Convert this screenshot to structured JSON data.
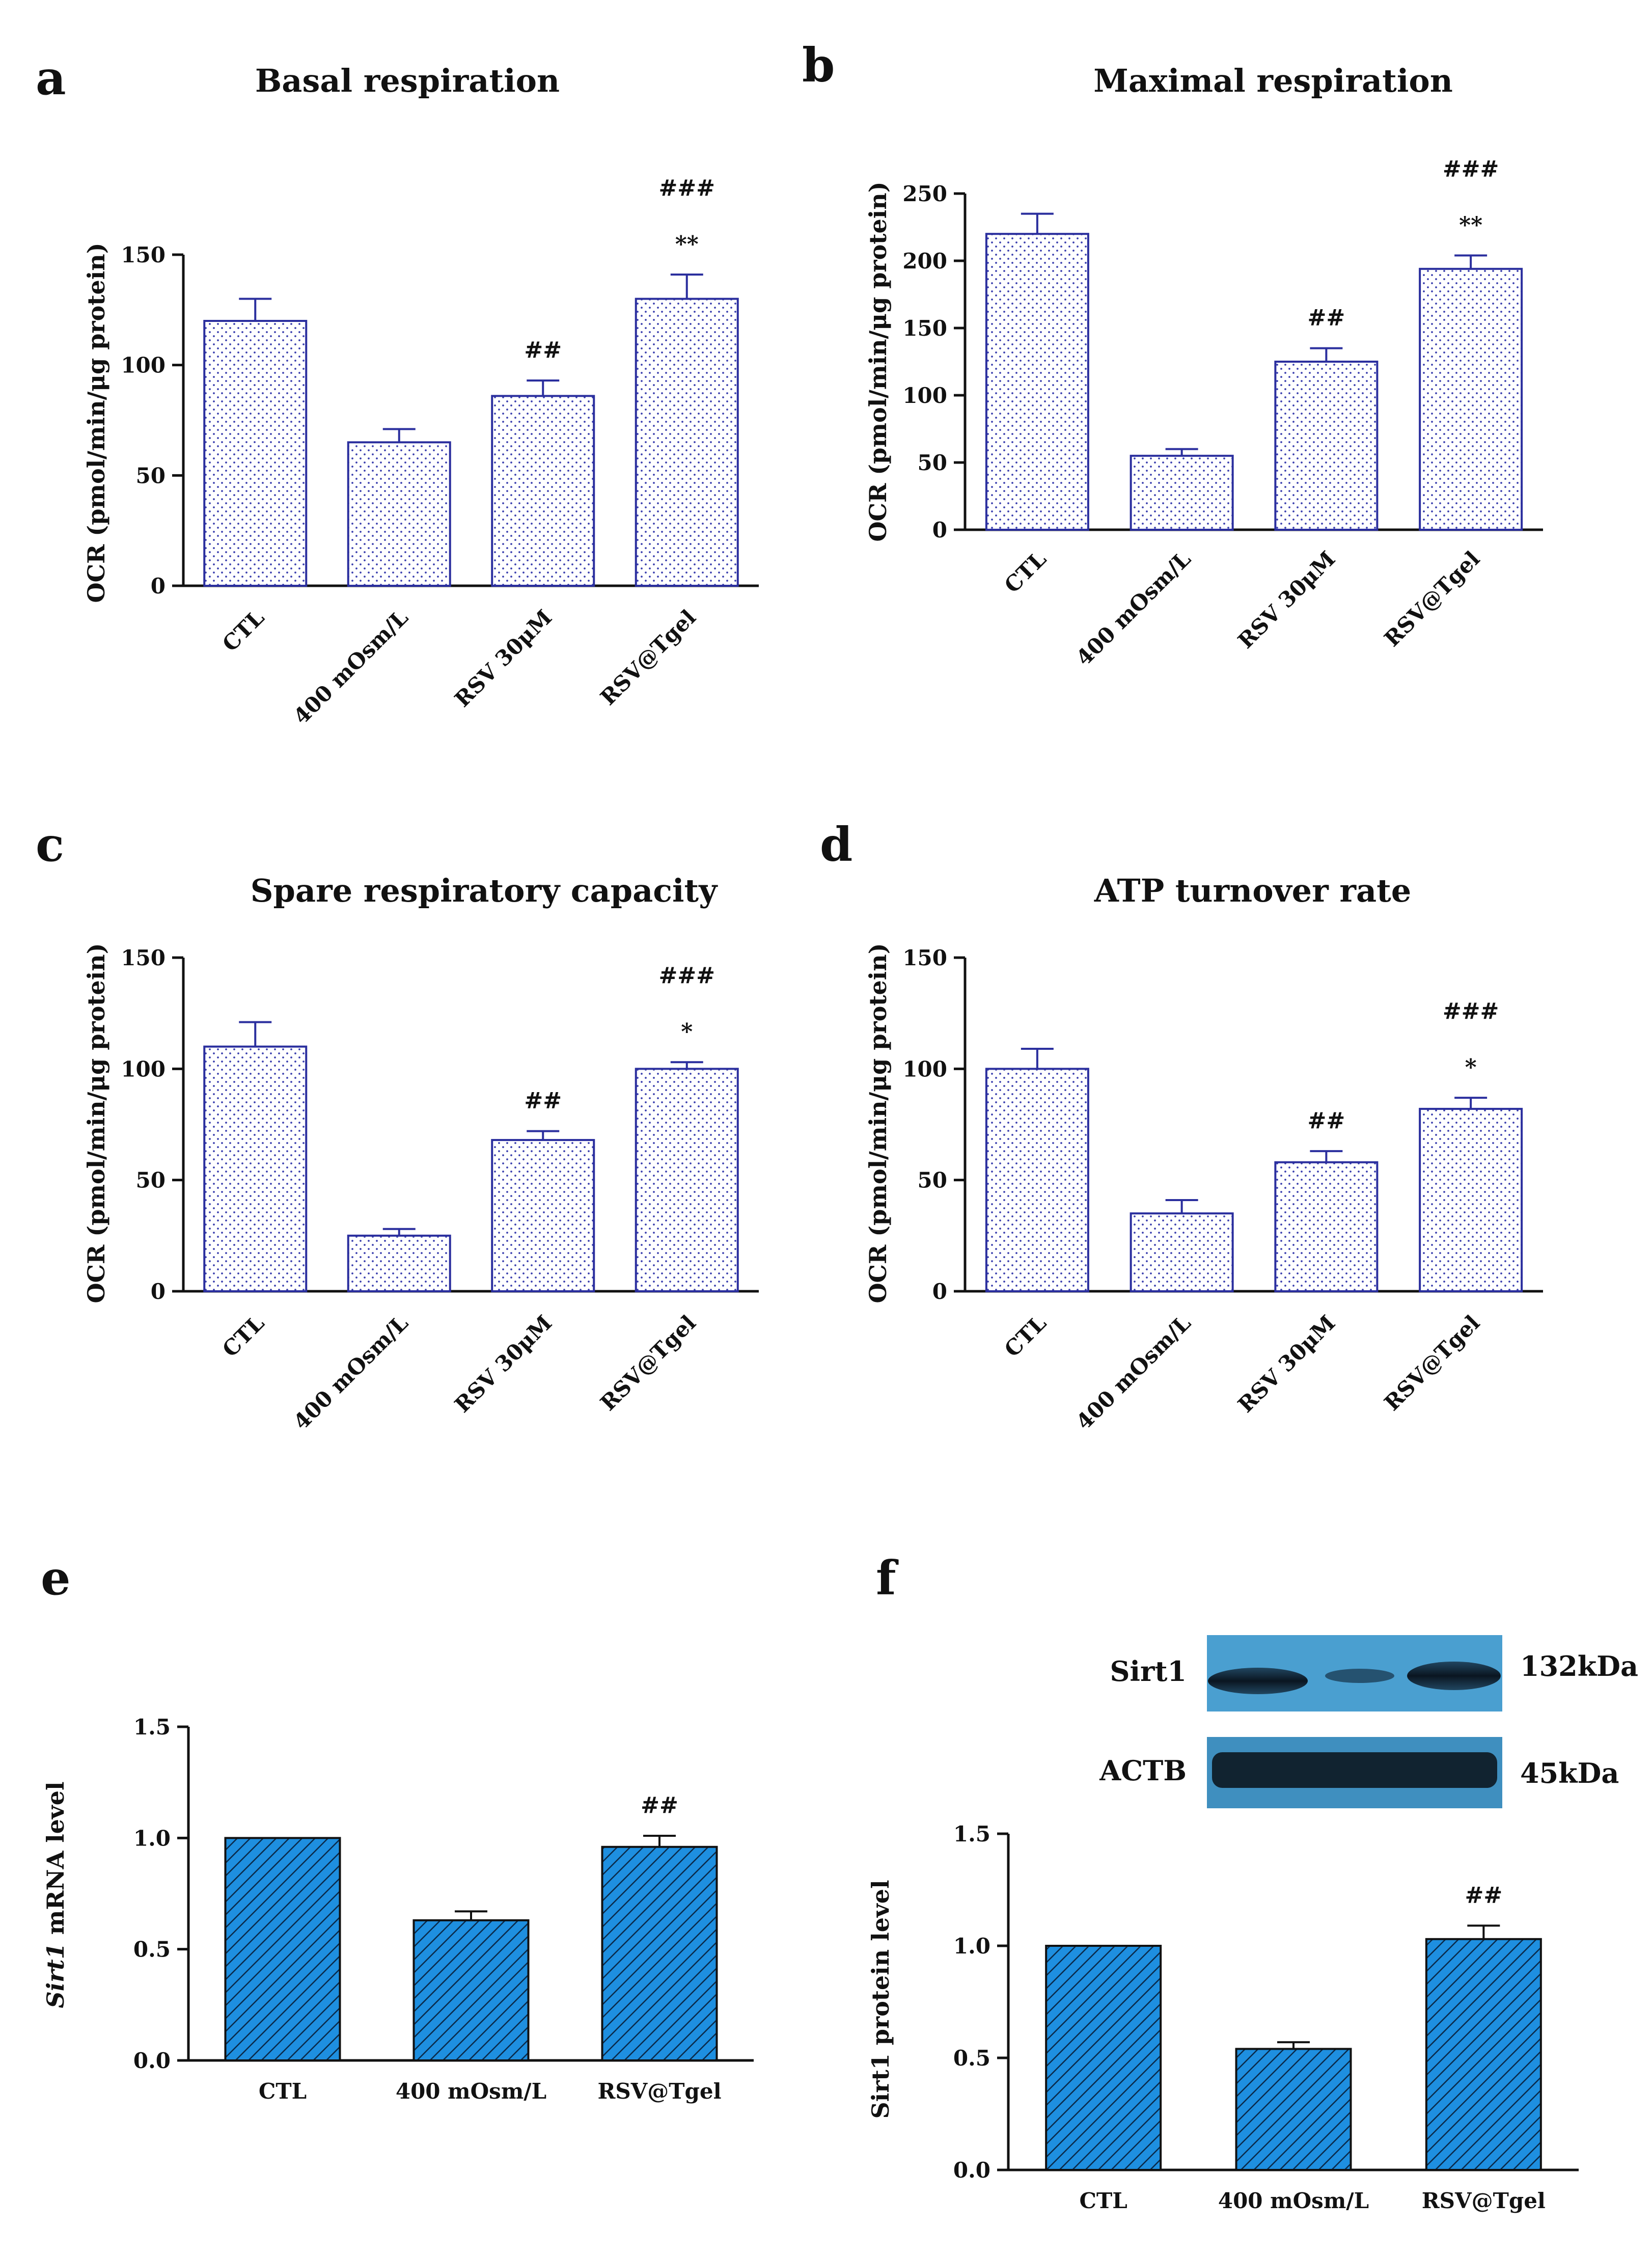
{
  "figure": {
    "panels": [
      {
        "id": "a",
        "letter": "a"
      },
      {
        "id": "b",
        "letter": "b"
      },
      {
        "id": "c",
        "letter": "c"
      },
      {
        "id": "d",
        "letter": "d"
      },
      {
        "id": "e",
        "letter": "e"
      },
      {
        "id": "f",
        "letter": "f"
      }
    ]
  },
  "western_blot": {
    "rows": [
      {
        "protein": "Sirt1",
        "size": "132kDa"
      },
      {
        "protein": "ACTB",
        "size": "45kDa"
      }
    ]
  },
  "colors": {
    "dotted_bar_edge": "#2b2f9e",
    "dotted_bar_dot": "#3a3fae",
    "hatched_bar_fill": "#1e8fe0",
    "hatch_line": "#0a2a4a",
    "blot_background": "#4a9fd0",
    "axis": "#111111"
  },
  "chart_data": [
    {
      "id": "a",
      "type": "bar",
      "style": "dotted",
      "title": "Basal respiration",
      "ylabel": "OCR (pmol/min/μg protein)",
      "xlabel": "",
      "categories": [
        "CTL",
        "400 mOsm/L",
        "RSV 30μM",
        "RSV@Tgel"
      ],
      "values": [
        120,
        65,
        86,
        130
      ],
      "errors": [
        10,
        6,
        7,
        11
      ],
      "annotations": [
        [
          "",
          ""
        ],
        [
          "",
          ""
        ],
        [
          "",
          "##"
        ],
        [
          "**",
          "###"
        ]
      ],
      "ylim": [
        0,
        150
      ],
      "yticks": [
        0,
        50,
        100,
        150
      ],
      "tick_labels": [
        "0",
        "50",
        "100",
        "150"
      ],
      "rotated_labels": true
    },
    {
      "id": "b",
      "type": "bar",
      "style": "dotted",
      "title": "Maximal respiration",
      "ylabel": "OCR (pmol/min/μg protein)",
      "xlabel": "",
      "categories": [
        "CTL",
        "400 mOsm/L",
        "RSV 30μM",
        "RSV@Tgel"
      ],
      "values": [
        220,
        55,
        125,
        194
      ],
      "errors": [
        15,
        5,
        10,
        10
      ],
      "annotations": [
        [
          "",
          ""
        ],
        [
          "",
          ""
        ],
        [
          "",
          "##"
        ],
        [
          "**",
          "###"
        ]
      ],
      "ylim": [
        0,
        250
      ],
      "yticks": [
        0,
        50,
        100,
        150,
        200,
        250
      ],
      "tick_labels": [
        "0",
        "50",
        "100",
        "150",
        "200",
        "250"
      ],
      "rotated_labels": true
    },
    {
      "id": "c",
      "type": "bar",
      "style": "dotted",
      "title": "Spare respiratory capacity",
      "ylabel": "OCR (pmol/min/μg protein)",
      "xlabel": "",
      "categories": [
        "CTL",
        "400 mOsm/L",
        "RSV 30μM",
        "RSV@Tgel"
      ],
      "values": [
        110,
        25,
        68,
        100
      ],
      "errors": [
        11,
        3,
        4,
        3
      ],
      "annotations": [
        [
          "",
          ""
        ],
        [
          "",
          ""
        ],
        [
          "",
          "##"
        ],
        [
          "*",
          "###"
        ]
      ],
      "ylim": [
        0,
        150
      ],
      "yticks": [
        0,
        50,
        100,
        150
      ],
      "tick_labels": [
        "0",
        "50",
        "100",
        "150"
      ],
      "rotated_labels": true
    },
    {
      "id": "d",
      "type": "bar",
      "style": "dotted",
      "title": "ATP turnover rate",
      "ylabel": "OCR (pmol/min/μg protein)",
      "xlabel": "",
      "categories": [
        "CTL",
        "400 mOsm/L",
        "RSV 30μM",
        "RSV@Tgel"
      ],
      "values": [
        100,
        35,
        58,
        82
      ],
      "errors": [
        9,
        6,
        5,
        5
      ],
      "annotations": [
        [
          "",
          ""
        ],
        [
          "",
          ""
        ],
        [
          "",
          "##"
        ],
        [
          "*",
          "###"
        ]
      ],
      "ylim": [
        0,
        150
      ],
      "yticks": [
        0,
        50,
        100,
        150
      ],
      "tick_labels": [
        "0",
        "50",
        "100",
        "150"
      ],
      "rotated_labels": true
    },
    {
      "id": "e",
      "type": "bar",
      "style": "hatched",
      "title": "",
      "ylabel": "Sirt1 mRNA level",
      "ylabel_italic_part": "Sirt1",
      "ylabel_rest": " mRNA level",
      "xlabel": "",
      "categories": [
        "CTL",
        "400 mOsm/L",
        "RSV@Tgel"
      ],
      "values": [
        1.0,
        0.63,
        0.96
      ],
      "errors": [
        0,
        0.04,
        0.05
      ],
      "annotations": [
        [
          "",
          ""
        ],
        [
          "",
          ""
        ],
        [
          "",
          "##"
        ]
      ],
      "ylim": [
        0,
        1.5
      ],
      "yticks": [
        0,
        0.5,
        1.0,
        1.5
      ],
      "tick_labels": [
        "0.0",
        "0.5",
        "1.0",
        "1.5"
      ],
      "rotated_labels": false
    },
    {
      "id": "f",
      "type": "bar",
      "style": "hatched",
      "title": "",
      "ylabel": "Sirt1 protein level",
      "xlabel": "",
      "categories": [
        "CTL",
        "400 mOsm/L",
        "RSV@Tgel"
      ],
      "values": [
        1.0,
        0.54,
        1.03
      ],
      "errors": [
        0,
        0.03,
        0.06
      ],
      "annotations": [
        [
          "",
          ""
        ],
        [
          "",
          ""
        ],
        [
          "",
          "##"
        ]
      ],
      "ylim": [
        0,
        1.5
      ],
      "yticks": [
        0,
        0.5,
        1.0,
        1.5
      ],
      "tick_labels": [
        "0.0",
        "0.5",
        "1.0",
        "1.5"
      ],
      "rotated_labels": false
    }
  ]
}
